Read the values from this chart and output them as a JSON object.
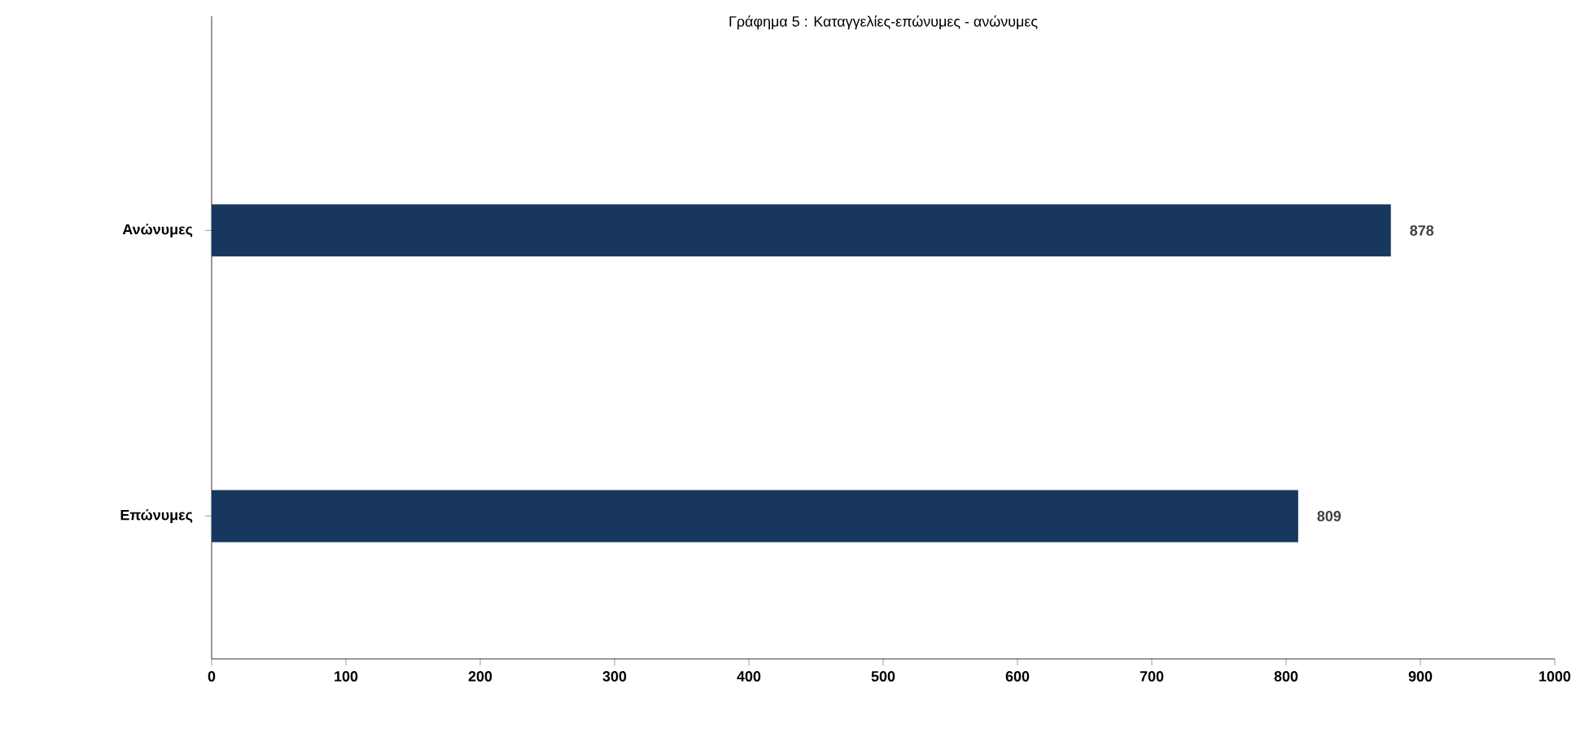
{
  "chart_data": {
    "type": "bar",
    "orientation": "horizontal",
    "title": "Γράφημα 5 : Καταγγελίες-επώνυμες - ανώνυμες",
    "categories": [
      "Ανώνυμες",
      "Επώνυμες"
    ],
    "values": [
      878,
      809
    ],
    "color": "#17375e",
    "xlim": [
      0,
      1000
    ],
    "xticks": [
      0,
      100,
      200,
      300,
      400,
      500,
      600,
      700,
      800,
      900,
      1000
    ],
    "data_labels": true
  }
}
